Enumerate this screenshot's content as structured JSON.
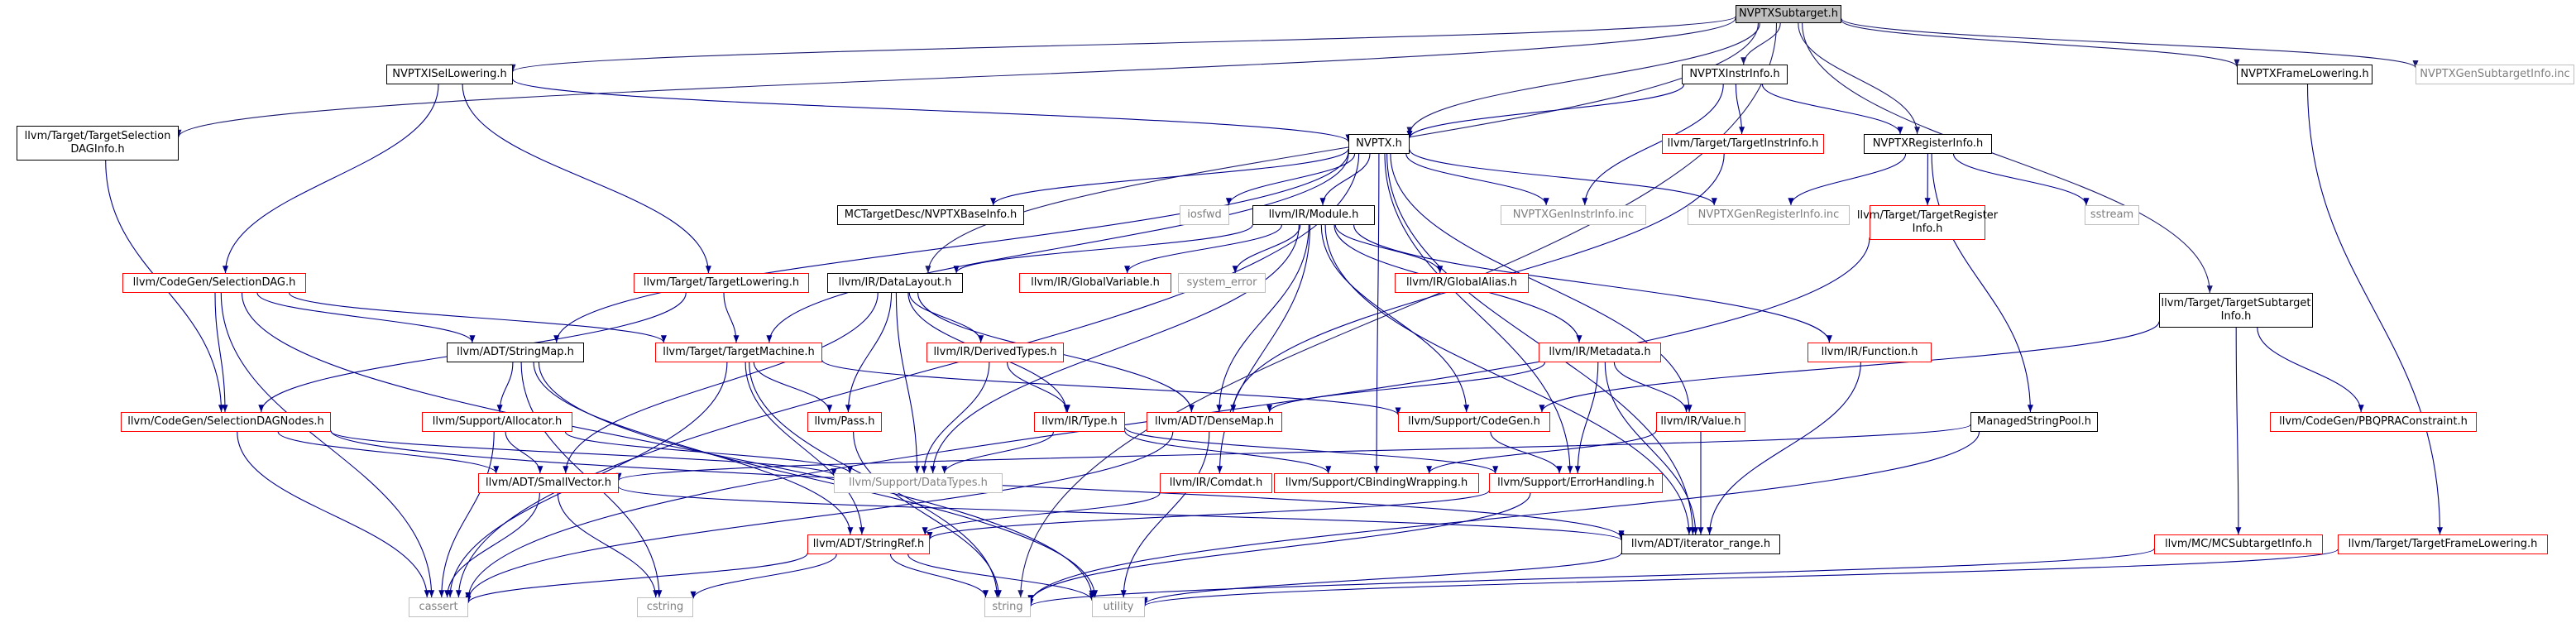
{
  "colors": {
    "root_fill": "#bfbfbf",
    "edge_root": "#191970",
    "edge_other": "#00008b",
    "border_documented": "#000000",
    "border_undocumented": "#ff0000",
    "border_system": "#bfbfbf",
    "text_system": "#7f7f7f"
  },
  "nodes": [
    {
      "id": "nvptxsubtarget",
      "label": "NVPTXSubtarget.h",
      "style": "root"
    },
    {
      "id": "nvptxisellowering",
      "label": "NVPTXISelLowering.h",
      "style": "black"
    },
    {
      "id": "nvptxinstrinfo",
      "label": "NVPTXInstrInfo.h",
      "style": "black"
    },
    {
      "id": "nvptxframelowering",
      "label": "NVPTXFrameLowering.h",
      "style": "black"
    },
    {
      "id": "nvptxgensubtargetinfo",
      "label": "NVPTXGenSubtargetInfo.inc",
      "style": "gray"
    },
    {
      "id": "targetselectiondaginfo",
      "label": "llvm/Target/TargetSelection DAGInfo.h",
      "style": "black"
    },
    {
      "id": "nvptx",
      "label": "NVPTX.h",
      "style": "black"
    },
    {
      "id": "targetinstrinfo",
      "label": "llvm/Target/TargetInstrInfo.h",
      "style": "red"
    },
    {
      "id": "nvptxregisterinfo",
      "label": "NVPTXRegisterInfo.h",
      "style": "black"
    },
    {
      "id": "mcbaseinfo",
      "label": "MCTargetDesc/NVPTXBaseInfo.h",
      "style": "black"
    },
    {
      "id": "iosfwd",
      "label": "iosfwd",
      "style": "gray"
    },
    {
      "id": "irmodule",
      "label": "llvm/IR/Module.h",
      "style": "black"
    },
    {
      "id": "nvptxgeninstrinfo",
      "label": "NVPTXGenInstrInfo.inc",
      "style": "gray"
    },
    {
      "id": "nvptxgenregisterinfo",
      "label": "NVPTXGenRegisterInfo.inc",
      "style": "gray"
    },
    {
      "id": "targetregisterinfo",
      "label": "llvm/Target/TargetRegister Info.h",
      "style": "red"
    },
    {
      "id": "sstream",
      "label": "sstream",
      "style": "gray"
    },
    {
      "id": "selectiondag",
      "label": "llvm/CodeGen/SelectionDAG.h",
      "style": "red"
    },
    {
      "id": "targetlowering",
      "label": "llvm/Target/TargetLowering.h",
      "style": "red"
    },
    {
      "id": "datalayout",
      "label": "llvm/IR/DataLayout.h",
      "style": "black"
    },
    {
      "id": "globalvariable",
      "label": "llvm/IR/GlobalVariable.h",
      "style": "red"
    },
    {
      "id": "system_error",
      "label": "system_error",
      "style": "gray"
    },
    {
      "id": "globalalias",
      "label": "llvm/IR/GlobalAlias.h",
      "style": "red"
    },
    {
      "id": "targetsubtargetinfo",
      "label": "llvm/Target/TargetSubtarget Info.h",
      "style": "black"
    },
    {
      "id": "stringmap",
      "label": "llvm/ADT/StringMap.h",
      "style": "black"
    },
    {
      "id": "targetmachine",
      "label": "llvm/Target/TargetMachine.h",
      "style": "red"
    },
    {
      "id": "derivedtypes",
      "label": "llvm/IR/DerivedTypes.h",
      "style": "red"
    },
    {
      "id": "metadata",
      "label": "llvm/IR/Metadata.h",
      "style": "red"
    },
    {
      "id": "function",
      "label": "llvm/IR/Function.h",
      "style": "red"
    },
    {
      "id": "selectiondagnodes",
      "label": "llvm/CodeGen/SelectionDAGNodes.h",
      "style": "red"
    },
    {
      "id": "allocator",
      "label": "llvm/Support/Allocator.h",
      "style": "red"
    },
    {
      "id": "pass",
      "label": "llvm/Pass.h",
      "style": "red"
    },
    {
      "id": "type",
      "label": "llvm/IR/Type.h",
      "style": "red"
    },
    {
      "id": "densemap",
      "label": "llvm/ADT/DenseMap.h",
      "style": "red"
    },
    {
      "id": "codegen",
      "label": "llvm/Support/CodeGen.h",
      "style": "red"
    },
    {
      "id": "value",
      "label": "llvm/IR/Value.h",
      "style": "red"
    },
    {
      "id": "managedstringpool",
      "label": "ManagedStringPool.h",
      "style": "black"
    },
    {
      "id": "pbqpraconstraint",
      "label": "llvm/CodeGen/PBQPRAConstraint.h",
      "style": "red"
    },
    {
      "id": "datatypes",
      "label": "llvm/Support/DataTypes.h",
      "style": "gray"
    },
    {
      "id": "smallvector",
      "label": "llvm/ADT/SmallVector.h",
      "style": "red"
    },
    {
      "id": "comdat",
      "label": "llvm/IR/Comdat.h",
      "style": "red"
    },
    {
      "id": "cbindingwrapping",
      "label": "llvm/Support/CBindingWrapping.h",
      "style": "red"
    },
    {
      "id": "errorhandling",
      "label": "llvm/Support/ErrorHandling.h",
      "style": "red"
    },
    {
      "id": "stringref",
      "label": "llvm/ADT/StringRef.h",
      "style": "red"
    },
    {
      "id": "iterator_range",
      "label": "llvm/ADT/iterator_range.h",
      "style": "black"
    },
    {
      "id": "mcsubtargetinfo",
      "label": "llvm/MC/MCSubtargetInfo.h",
      "style": "red"
    },
    {
      "id": "targetframelowering",
      "label": "llvm/Target/TargetFrameLowering.h",
      "style": "red"
    },
    {
      "id": "cassert",
      "label": "cassert",
      "style": "gray"
    },
    {
      "id": "cstring",
      "label": "cstring",
      "style": "gray"
    },
    {
      "id": "string",
      "label": "string",
      "style": "gray"
    },
    {
      "id": "utility",
      "label": "utility",
      "style": "gray"
    }
  ],
  "edges": [
    [
      "nvptxsubtarget",
      "nvptxisellowering"
    ],
    [
      "nvptxsubtarget",
      "nvptxinstrinfo"
    ],
    [
      "nvptxsubtarget",
      "nvptxframelowering"
    ],
    [
      "nvptxsubtarget",
      "nvptxgensubtargetinfo"
    ],
    [
      "nvptxsubtarget",
      "targetselectiondaginfo"
    ],
    [
      "nvptxsubtarget",
      "nvptx"
    ],
    [
      "nvptxsubtarget",
      "nvptxregisterinfo"
    ],
    [
      "nvptxsubtarget",
      "datalayout"
    ],
    [
      "nvptxsubtarget",
      "targetsubtargetinfo"
    ],
    [
      "nvptxsubtarget",
      "string"
    ],
    [
      "nvptxisellowering",
      "nvptx"
    ],
    [
      "nvptxisellowering",
      "selectiondag"
    ],
    [
      "nvptxisellowering",
      "targetlowering"
    ],
    [
      "nvptxinstrinfo",
      "nvptx"
    ],
    [
      "nvptxinstrinfo",
      "targetinstrinfo"
    ],
    [
      "nvptxinstrinfo",
      "nvptxregisterinfo"
    ],
    [
      "nvptxinstrinfo",
      "nvptxgeninstrinfo"
    ],
    [
      "nvptxframelowering",
      "targetframelowering"
    ],
    [
      "targetselectiondaginfo",
      "selectiondagnodes"
    ],
    [
      "nvptx",
      "mcbaseinfo"
    ],
    [
      "nvptx",
      "iosfwd"
    ],
    [
      "nvptx",
      "irmodule"
    ],
    [
      "nvptx",
      "nvptxgeninstrinfo"
    ],
    [
      "nvptx",
      "nvptxgenregisterinfo"
    ],
    [
      "nvptx",
      "cassert"
    ],
    [
      "nvptx",
      "stringmap"
    ],
    [
      "nvptx",
      "value"
    ],
    [
      "nvptx",
      "targetmachine"
    ],
    [
      "nvptx",
      "errorhandling"
    ],
    [
      "nvptx",
      "cbindingwrapping"
    ],
    [
      "nvptx",
      "iterator_range"
    ],
    [
      "targetinstrinfo",
      "densemap"
    ],
    [
      "nvptxregisterinfo",
      "nvptxgenregisterinfo"
    ],
    [
      "nvptxregisterinfo",
      "targetregisterinfo"
    ],
    [
      "nvptxregisterinfo",
      "sstream"
    ],
    [
      "nvptxregisterinfo",
      "managedstringpool"
    ],
    [
      "targetregisterinfo",
      "cassert"
    ],
    [
      "irmodule",
      "datalayout"
    ],
    [
      "irmodule",
      "globalvariable"
    ],
    [
      "irmodule",
      "system_error"
    ],
    [
      "irmodule",
      "globalalias"
    ],
    [
      "irmodule",
      "function"
    ],
    [
      "irmodule",
      "metadata"
    ],
    [
      "irmodule",
      "codegen"
    ],
    [
      "irmodule",
      "comdat"
    ],
    [
      "irmodule",
      "densemap"
    ],
    [
      "irmodule",
      "datatypes"
    ],
    [
      "irmodule",
      "iterator_range"
    ],
    [
      "selectiondag",
      "selectiondagnodes"
    ],
    [
      "selectiondag",
      "stringmap"
    ],
    [
      "selectiondag",
      "targetmachine"
    ],
    [
      "selectiondag",
      "cassert"
    ],
    [
      "selectiondag",
      "utility"
    ],
    [
      "targetlowering",
      "targetmachine"
    ],
    [
      "targetlowering",
      "selectiondagnodes"
    ],
    [
      "datalayout",
      "derivedtypes"
    ],
    [
      "datalayout",
      "pass"
    ],
    [
      "datalayout",
      "type"
    ],
    [
      "datalayout",
      "densemap"
    ],
    [
      "datalayout",
      "datatypes"
    ],
    [
      "datalayout",
      "smallvector"
    ],
    [
      "targetsubtargetinfo",
      "codegen"
    ],
    [
      "targetsubtargetinfo",
      "pbqpraconstraint"
    ],
    [
      "targetsubtargetinfo",
      "mcsubtargetinfo"
    ],
    [
      "stringmap",
      "allocator"
    ],
    [
      "stringmap",
      "stringref"
    ],
    [
      "stringmap",
      "cstring"
    ],
    [
      "stringmap",
      "utility"
    ],
    [
      "targetmachine",
      "pass"
    ],
    [
      "targetmachine",
      "codegen"
    ],
    [
      "targetmachine",
      "cassert"
    ],
    [
      "targetmachine",
      "stringref"
    ],
    [
      "targetmachine",
      "string"
    ],
    [
      "derivedtypes",
      "type"
    ],
    [
      "derivedtypes",
      "datatypes"
    ],
    [
      "metadata",
      "value"
    ],
    [
      "metadata",
      "densemap"
    ],
    [
      "metadata",
      "errorhandling"
    ],
    [
      "metadata",
      "iterator_range"
    ],
    [
      "function",
      "iterator_range"
    ],
    [
      "selectiondagnodes",
      "smallvector"
    ],
    [
      "selectiondagnodes",
      "datatypes"
    ],
    [
      "selectiondagnodes",
      "cassert"
    ],
    [
      "selectiondagnodes",
      "iterator_range"
    ],
    [
      "allocator",
      "smallvector"
    ],
    [
      "allocator",
      "datatypes"
    ],
    [
      "allocator",
      "cassert"
    ],
    [
      "pass",
      "string"
    ],
    [
      "type",
      "datatypes"
    ],
    [
      "type",
      "cbindingwrapping"
    ],
    [
      "type",
      "errorhandling"
    ],
    [
      "densemap",
      "cassert"
    ],
    [
      "densemap",
      "utility"
    ],
    [
      "codegen",
      "errorhandling"
    ],
    [
      "value",
      "cbindingwrapping"
    ],
    [
      "value",
      "iterator_range"
    ],
    [
      "managedstringpool",
      "smallvector"
    ],
    [
      "managedstringpool",
      "string"
    ],
    [
      "smallvector",
      "cassert"
    ],
    [
      "smallvector",
      "cstring"
    ],
    [
      "smallvector",
      "iterator_range"
    ],
    [
      "comdat",
      "stringref"
    ],
    [
      "errorhandling",
      "stringref"
    ],
    [
      "errorhandling",
      "string"
    ],
    [
      "stringref",
      "cassert"
    ],
    [
      "stringref",
      "cstring"
    ],
    [
      "stringref",
      "string"
    ],
    [
      "stringref",
      "utility"
    ],
    [
      "iterator_range",
      "utility"
    ],
    [
      "mcsubtargetinfo",
      "string"
    ],
    [
      "targetframelowering",
      "utility"
    ]
  ]
}
